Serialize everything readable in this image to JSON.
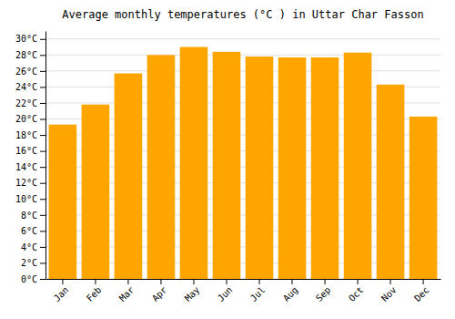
{
  "chart_data": {
    "type": "bar",
    "title": "Average monthly temperatures (°C ) in Uttar Char Fasson",
    "categories": [
      "Jan",
      "Feb",
      "Mar",
      "Apr",
      "May",
      "Jun",
      "Jul",
      "Aug",
      "Sep",
      "Oct",
      "Nov",
      "Dec"
    ],
    "values": [
      19.3,
      21.8,
      25.7,
      28.0,
      29.0,
      28.4,
      27.8,
      27.7,
      27.7,
      28.3,
      24.3,
      20.3
    ],
    "color": "#FFA500",
    "ylim": [
      0,
      31
    ],
    "yticks": [
      {
        "value": 0,
        "label": "0°C"
      },
      {
        "value": 2,
        "label": "2°C"
      },
      {
        "value": 4,
        "label": "4°C"
      },
      {
        "value": 6,
        "label": "6°C"
      },
      {
        "value": 8,
        "label": "8°C"
      },
      {
        "value": 10,
        "label": "10°C"
      },
      {
        "value": 12,
        "label": "12°C"
      },
      {
        "value": 14,
        "label": "14°C"
      },
      {
        "value": 16,
        "label": "16°C"
      },
      {
        "value": 18,
        "label": "18°C"
      },
      {
        "value": 20,
        "label": "20°C"
      },
      {
        "value": 22,
        "label": "22°C"
      },
      {
        "value": 24,
        "label": "24°C"
      },
      {
        "value": 26,
        "label": "26°C"
      },
      {
        "value": 28,
        "label": "28°C"
      },
      {
        "value": 30,
        "label": "30°C"
      }
    ],
    "grid": true
  }
}
